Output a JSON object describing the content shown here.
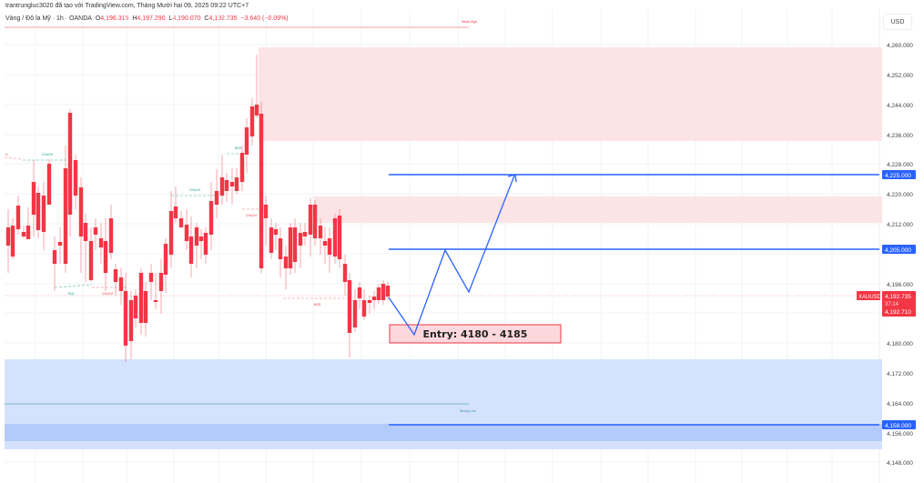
{
  "header": {
    "attribution": "trantrungluc3020 đã tạo với TradingView.com, Tháng Mười hai 09, 2025 09:22 UTC+7",
    "symbol_name": "Vàng / Đô la Mỹ · 1h · OANDA",
    "ohlc": {
      "open_label": "O",
      "open": "4,196.315",
      "high_label": "H",
      "high": "4,197.290",
      "low_label": "L",
      "low": "4,190.070",
      "close_label": "C",
      "close": "4,192.735",
      "change": "−3.640 (−0.09%)"
    }
  },
  "price_axis": {
    "currency": "USD",
    "ticks": [
      "4,260.000",
      "4,252.000",
      "4,244.000",
      "4,236.000",
      "4,228.000",
      "4,220.000",
      "4,212.000",
      "4,196.000",
      "4,180.000",
      "4,172.000",
      "4,164.000",
      "4,156.000",
      "4,148.000"
    ],
    "level_labels": [
      {
        "value": "4,225.000",
        "color": "#2962ff"
      },
      {
        "value": "4,205.000",
        "color": "#2962ff"
      },
      {
        "value": "4,158.000",
        "color": "#2962ff"
      }
    ],
    "current_price": {
      "symbol": "XAUUSD",
      "price": "4,192.735",
      "countdown": "37:14",
      "bid": "4,192.710",
      "color": "#f23645"
    }
  },
  "annotations": {
    "entry_label": "Entry: 4180 - 4185",
    "weak_high": "Weak High",
    "strong_low": "Strong Low",
    "choch_labels": [
      "CHoCH",
      "CHoCH",
      "CHoCH",
      "CHoCH"
    ],
    "bos_label": "BOS",
    "eql_label": "EQL",
    "eqh_label": "H"
  },
  "colors": {
    "bull": "#089981",
    "bear": "#f23645",
    "supply_zone": "#fce4e6",
    "demand_zone": "#d4e2fd",
    "demand_inner": "#b3cbfa",
    "level_line": "#2962ff",
    "path_line": "#2962ff"
  }
}
